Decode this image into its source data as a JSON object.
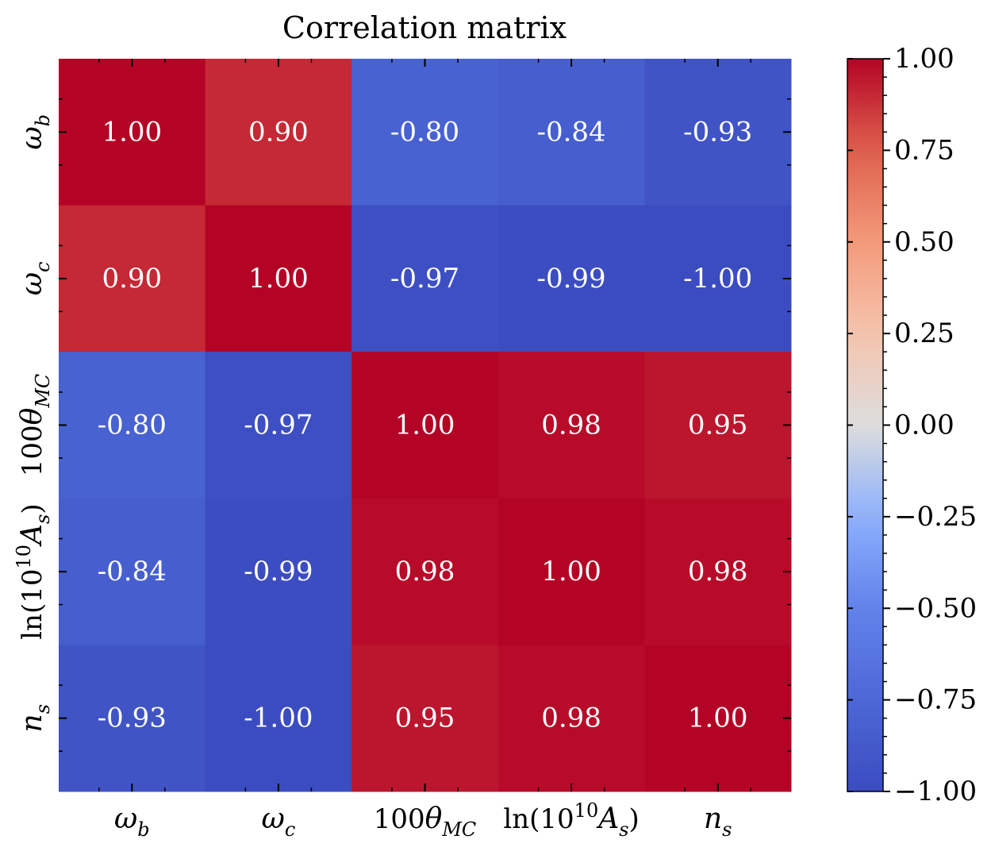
{
  "chart_data": {
    "type": "heatmap",
    "title": "Correlation matrix",
    "rows": [
      {
        "main": "ω",
        "sub": "b",
        "sup": "",
        "pre": "",
        "post": ""
      },
      {
        "main": "ω",
        "sub": "c",
        "sup": "",
        "pre": "",
        "post": ""
      },
      {
        "main": "θ",
        "sub": "MC",
        "sup": "",
        "pre": "100",
        "post": ""
      },
      {
        "main": "A",
        "sub": "s",
        "sup": "10",
        "pre": "ln(10",
        "post": ")"
      },
      {
        "main": "n",
        "sub": "s",
        "sup": "",
        "pre": "",
        "post": ""
      }
    ],
    "columns": [
      {
        "main": "ω",
        "sub": "b",
        "sup": "",
        "pre": "",
        "post": ""
      },
      {
        "main": "ω",
        "sub": "c",
        "sup": "",
        "pre": "",
        "post": ""
      },
      {
        "main": "θ",
        "sub": "MC",
        "sup": "",
        "pre": "100",
        "post": ""
      },
      {
        "main": "A",
        "sub": "s",
        "sup": "10",
        "pre": "ln(10",
        "post": ")"
      },
      {
        "main": "n",
        "sub": "s",
        "sup": "",
        "pre": "",
        "post": ""
      }
    ],
    "values": [
      [
        1.0,
        0.9,
        -0.8,
        -0.84,
        -0.93
      ],
      [
        0.9,
        1.0,
        -0.97,
        -0.99,
        -1.0
      ],
      [
        -0.8,
        -0.97,
        1.0,
        0.98,
        0.95
      ],
      [
        -0.84,
        -0.99,
        0.98,
        1.0,
        0.98
      ],
      [
        -0.93,
        -1.0,
        0.95,
        0.98,
        1.0
      ]
    ],
    "cell_labels": [
      [
        "1.00",
        "0.90",
        "-0.80",
        "-0.84",
        "-0.93"
      ],
      [
        "0.90",
        "1.00",
        "-0.97",
        "-0.99",
        "-1.00"
      ],
      [
        "-0.80",
        "-0.97",
        "1.00",
        "0.98",
        "0.95"
      ],
      [
        "-0.84",
        "-0.99",
        "0.98",
        "1.00",
        "0.98"
      ],
      [
        "-0.93",
        "-1.00",
        "0.95",
        "0.98",
        "1.00"
      ]
    ],
    "colormap": "coolwarm",
    "vmin": -1.0,
    "vmax": 1.0,
    "colorbar": {
      "ticks": [
        1.0,
        0.75,
        0.5,
        0.25,
        0.0,
        -0.25,
        -0.5,
        -0.75,
        -1.0
      ],
      "tick_labels": [
        "1.00",
        "0.75",
        "0.50",
        "0.25",
        "0.00",
        "−0.25",
        "−0.50",
        "−0.75",
        "−1.00"
      ],
      "placement": "right"
    }
  }
}
